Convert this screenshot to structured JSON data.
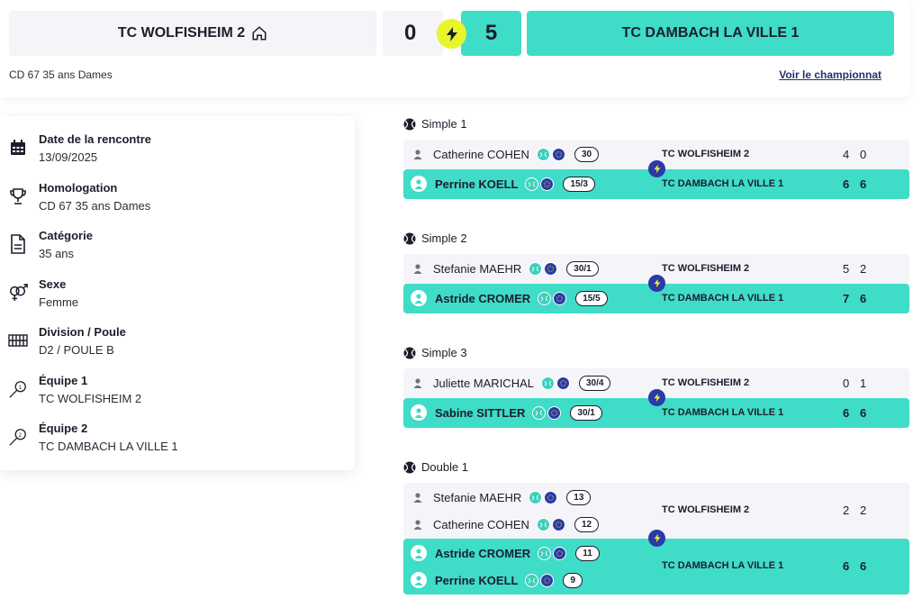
{
  "header": {
    "home_team": "TC WOLFISHEIM 2",
    "away_team": "TC DAMBACH LA VILLE 1",
    "home_score": "0",
    "away_score": "5",
    "subtitle": "CD 67 35 ans Dames",
    "championship_link": "Voir le championnat"
  },
  "info": [
    {
      "icon": "calendar-icon",
      "title": "Date de la rencontre",
      "value": "13/09/2025"
    },
    {
      "icon": "trophy-icon",
      "title": "Homologation",
      "value": "CD 67 35 ans Dames"
    },
    {
      "icon": "document-icon",
      "title": "Catégorie",
      "value": "35 ans"
    },
    {
      "icon": "gender-icon",
      "title": "Sexe",
      "value": "Femme"
    },
    {
      "icon": "court-icon",
      "title": "Division / Poule",
      "value": "D2 / POULE B"
    },
    {
      "icon": "racket-1-icon",
      "title": "Équipe 1",
      "value": "TC WOLFISHEIM 2"
    },
    {
      "icon": "racket-2-icon",
      "title": "Équipe 2",
      "value": "TC DAMBACH LA VILLE 1"
    }
  ],
  "matches": [
    {
      "title": "Simple 1",
      "home": {
        "team": "TC WOLFISHEIM 2",
        "players": [
          {
            "name": "Catherine COHEN",
            "rank": "30"
          }
        ],
        "sets": [
          "4",
          "0"
        ]
      },
      "away": {
        "team": "TC DAMBACH LA VILLE 1",
        "players": [
          {
            "name": "Perrine KOELL",
            "rank": "15/3"
          }
        ],
        "sets": [
          "6",
          "6"
        ]
      }
    },
    {
      "title": "Simple 2",
      "home": {
        "team": "TC WOLFISHEIM 2",
        "players": [
          {
            "name": "Stefanie MAEHR",
            "rank": "30/1"
          }
        ],
        "sets": [
          "5",
          "2"
        ]
      },
      "away": {
        "team": "TC DAMBACH LA VILLE 1",
        "players": [
          {
            "name": "Astride CROMER",
            "rank": "15/5"
          }
        ],
        "sets": [
          "7",
          "6"
        ]
      }
    },
    {
      "title": "Simple 3",
      "home": {
        "team": "TC WOLFISHEIM 2",
        "players": [
          {
            "name": "Juliette MARICHAL",
            "rank": "30/4"
          }
        ],
        "sets": [
          "0",
          "1"
        ]
      },
      "away": {
        "team": "TC DAMBACH LA VILLE 1",
        "players": [
          {
            "name": "Sabine SITTLER",
            "rank": "30/1"
          }
        ],
        "sets": [
          "6",
          "6"
        ]
      }
    },
    {
      "title": "Double 1",
      "home": {
        "team": "TC WOLFISHEIM 2",
        "players": [
          {
            "name": "Stefanie MAEHR",
            "rank": "13"
          },
          {
            "name": "Catherine COHEN",
            "rank": "12"
          }
        ],
        "sets": [
          "2",
          "2"
        ]
      },
      "away": {
        "team": "TC DAMBACH LA VILLE 1",
        "players": [
          {
            "name": "Astride CROMER",
            "rank": "11"
          },
          {
            "name": "Perrine KOELL",
            "rank": "9"
          }
        ],
        "sets": [
          "6",
          "6"
        ]
      }
    }
  ],
  "colors": {
    "accent": "#3fdcc8",
    "panel": "#f4f4f9",
    "bolt": "#e8f52b",
    "badge_blue": "#2b3aa8"
  }
}
